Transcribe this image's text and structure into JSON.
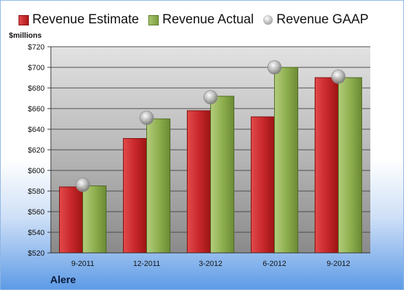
{
  "legend": {
    "estimate": "Revenue Estimate",
    "actual": "Revenue Actual",
    "gaap": "Revenue GAAP"
  },
  "units_label": "$millions",
  "company": "Alere",
  "colors": {
    "estimate": "#c8282b",
    "actual": "#8fb04f",
    "gaap": "#aaaaaa"
  },
  "chart_data": {
    "type": "bar",
    "categories": [
      "9-2011",
      "12-2011",
      "3-2012",
      "6-2012",
      "9-2012"
    ],
    "series": [
      {
        "name": "Revenue Estimate",
        "values": [
          584,
          631,
          658,
          652,
          690
        ]
      },
      {
        "name": "Revenue Actual",
        "values": [
          585,
          650,
          672,
          700,
          690
        ]
      },
      {
        "name": "Revenue GAAP",
        "values": [
          586,
          651,
          671,
          700,
          691
        ],
        "style": "marker"
      }
    ],
    "ylabel": "$millions",
    "ylim": [
      520,
      720
    ],
    "yticks": [
      "$520",
      "$540",
      "$560",
      "$580",
      "$600",
      "$620",
      "$640",
      "$660",
      "$680",
      "$700",
      "$720"
    ],
    "grid": true,
    "legend_position": "top"
  }
}
